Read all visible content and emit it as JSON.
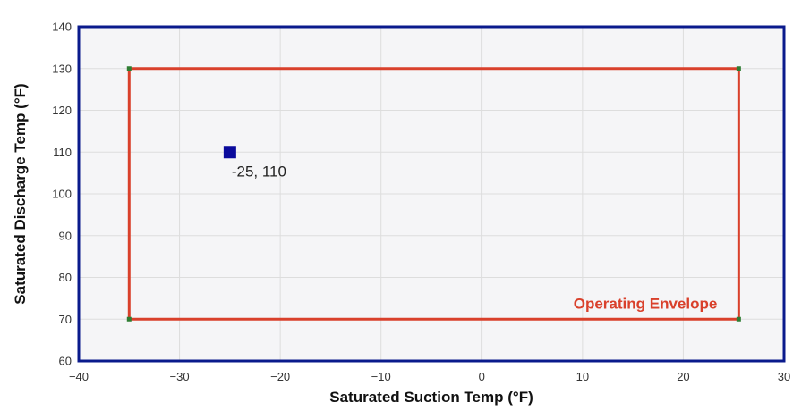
{
  "chart_data": {
    "type": "scatter",
    "xlabel": "Saturated Suction Temp (°F)",
    "ylabel": "Saturated Discharge Temp (°F)",
    "xlim": [
      -40,
      30
    ],
    "ylim": [
      60,
      140
    ],
    "x_ticks": [
      -40,
      -30,
      -20,
      -10,
      0,
      10,
      20,
      30
    ],
    "y_ticks": [
      60,
      70,
      80,
      90,
      100,
      110,
      120,
      130,
      140
    ],
    "x_tick_labels": [
      "-40",
      "-30",
      "-20",
      "-10",
      "0",
      "10",
      "20",
      "30"
    ],
    "y_tick_labels": [
      "60",
      "70",
      "80",
      "90",
      "100",
      "110",
      "120",
      "130",
      "140"
    ],
    "grid": true,
    "series": [
      {
        "name": "Operating Envelope",
        "kind": "polygon",
        "color": "#d9402b",
        "vertex_color": "#2e7d32",
        "points": [
          [
            -35,
            130
          ],
          [
            25.5,
            130
          ],
          [
            25.5,
            70
          ],
          [
            -35,
            70
          ]
        ]
      },
      {
        "kind": "point",
        "color": "#0a0a9c",
        "points": [
          [
            -25,
            110
          ]
        ],
        "labels": [
          "-25, 110"
        ]
      }
    ],
    "annotations": [
      {
        "text": "Operating Envelope",
        "color": "#d9402b",
        "placement": "bottom-right inside envelope"
      }
    ],
    "colors": {
      "plot_background": "#f5f5f7",
      "plot_border": "#0a1a8c",
      "grid": "#dddddd",
      "zero_line": "#c8c8c8"
    }
  }
}
